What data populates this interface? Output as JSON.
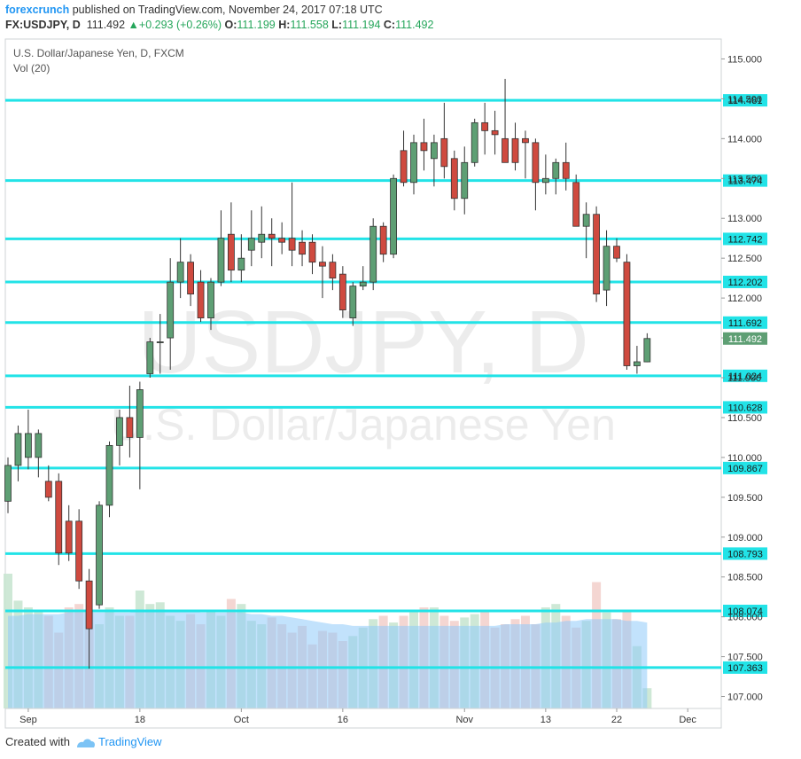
{
  "header": {
    "author": "forexcrunch",
    "published": "published on TradingView.com, November 24, 2017 07:18 UTC",
    "symbol": "FX:USDJPY, D",
    "last": "111.492",
    "change_arrow": "▲",
    "change": "+0.293 (+0.26%)",
    "o_label": "O:",
    "o": "111.199",
    "h_label": "H:",
    "h": "111.558",
    "l_label": "L:",
    "l": "111.194",
    "c_label": "C:",
    "c": "111.492"
  },
  "legend": {
    "series_title": "U.S. Dollar/Japanese Yen, D, FXCM",
    "volume_title": "Vol (20)"
  },
  "watermark": {
    "line1": "USDJPY, D",
    "line2": "U.S. Dollar/Japanese Yen"
  },
  "footer": {
    "created_with": "Created with",
    "brand": "TradingView"
  },
  "colors": {
    "up": "#5e9f74",
    "down": "#cf4a3f",
    "level_line": "#22e3e7",
    "volume_avg": "#90caf9",
    "last_price_label": "#5e9f74"
  },
  "chart_data": {
    "type": "candlestick",
    "y_range": [
      106.85,
      115.25
    ],
    "y_ticks": [
      "115.000",
      "114.500",
      "114.000",
      "113.500",
      "113.000",
      "112.500",
      "112.000",
      "111.500",
      "111.000",
      "110.500",
      "110.000",
      "109.500",
      "109.000",
      "108.500",
      "108.000",
      "107.500",
      "107.000"
    ],
    "x_ticks": [
      {
        "label": "Sep",
        "index": 2
      },
      {
        "label": "18",
        "index": 13
      },
      {
        "label": "Oct",
        "index": 23
      },
      {
        "label": "16",
        "index": 33
      },
      {
        "label": "Nov",
        "index": 45
      },
      {
        "label": "13",
        "index": 53
      },
      {
        "label": "22",
        "index": 60
      },
      {
        "label": "Dec",
        "index": 67
      }
    ],
    "horizontal_levels": [
      114.481,
      113.474,
      112.742,
      112.202,
      111.692,
      111.024,
      110.628,
      109.867,
      108.793,
      108.074,
      107.363
    ],
    "level_labels": [
      "114.481",
      "113.474",
      "112.742",
      "112.202",
      "111.692",
      "111.024",
      "110.628",
      "109.867",
      "108.793",
      "108.074",
      "107.363"
    ],
    "last_price": 111.492,
    "last_price_label": "111.492",
    "candles": [
      {
        "o": 109.45,
        "h": 110.0,
        "l": 109.3,
        "c": 109.9
      },
      {
        "o": 109.9,
        "h": 110.4,
        "l": 109.7,
        "c": 110.3
      },
      {
        "o": 110.0,
        "h": 110.6,
        "l": 109.85,
        "c": 110.3
      },
      {
        "o": 110.0,
        "h": 110.35,
        "l": 109.75,
        "c": 110.3
      },
      {
        "o": 109.7,
        "h": 109.9,
        "l": 109.45,
        "c": 109.5
      },
      {
        "o": 109.7,
        "h": 109.8,
        "l": 108.65,
        "c": 108.8
      },
      {
        "o": 109.2,
        "h": 109.4,
        "l": 108.7,
        "c": 108.8
      },
      {
        "o": 109.2,
        "h": 109.35,
        "l": 108.35,
        "c": 108.45
      },
      {
        "o": 108.45,
        "h": 108.6,
        "l": 107.35,
        "c": 107.85
      },
      {
        "o": 108.15,
        "h": 109.45,
        "l": 108.1,
        "c": 109.4
      },
      {
        "o": 109.4,
        "h": 110.2,
        "l": 109.25,
        "c": 110.15
      },
      {
        "o": 110.15,
        "h": 110.6,
        "l": 109.9,
        "c": 110.5
      },
      {
        "o": 110.5,
        "h": 110.9,
        "l": 110.0,
        "c": 110.25
      },
      {
        "o": 110.25,
        "h": 110.95,
        "l": 109.6,
        "c": 110.85
      },
      {
        "o": 111.05,
        "h": 111.5,
        "l": 111.0,
        "c": 111.45
      },
      {
        "o": 111.45,
        "h": 111.8,
        "l": 111.05,
        "c": 111.45
      },
      {
        "o": 111.5,
        "h": 112.5,
        "l": 111.1,
        "c": 112.2
      },
      {
        "o": 112.2,
        "h": 112.75,
        "l": 112.0,
        "c": 112.45
      },
      {
        "o": 112.45,
        "h": 112.55,
        "l": 111.9,
        "c": 112.05
      },
      {
        "o": 112.2,
        "h": 112.35,
        "l": 111.7,
        "c": 111.75
      },
      {
        "o": 111.75,
        "h": 112.25,
        "l": 111.6,
        "c": 112.2
      },
      {
        "o": 112.2,
        "h": 113.1,
        "l": 112.15,
        "c": 112.75
      },
      {
        "o": 112.8,
        "h": 113.2,
        "l": 112.2,
        "c": 112.35
      },
      {
        "o": 112.35,
        "h": 112.8,
        "l": 112.2,
        "c": 112.5
      },
      {
        "o": 112.6,
        "h": 113.1,
        "l": 112.4,
        "c": 112.75
      },
      {
        "o": 112.7,
        "h": 113.15,
        "l": 112.5,
        "c": 112.8
      },
      {
        "o": 112.8,
        "h": 113.0,
        "l": 112.4,
        "c": 112.75
      },
      {
        "o": 112.75,
        "h": 112.95,
        "l": 112.55,
        "c": 112.7
      },
      {
        "o": 112.75,
        "h": 113.45,
        "l": 112.4,
        "c": 112.6
      },
      {
        "o": 112.7,
        "h": 112.85,
        "l": 112.4,
        "c": 112.55
      },
      {
        "o": 112.7,
        "h": 112.8,
        "l": 112.3,
        "c": 112.45
      },
      {
        "o": 112.45,
        "h": 112.65,
        "l": 112.0,
        "c": 112.4
      },
      {
        "o": 112.45,
        "h": 112.55,
        "l": 112.1,
        "c": 112.25
      },
      {
        "o": 112.3,
        "h": 112.4,
        "l": 111.75,
        "c": 111.85
      },
      {
        "o": 111.75,
        "h": 112.2,
        "l": 111.65,
        "c": 112.15
      },
      {
        "o": 112.15,
        "h": 112.4,
        "l": 112.1,
        "c": 112.2
      },
      {
        "o": 112.2,
        "h": 113.0,
        "l": 112.1,
        "c": 112.9
      },
      {
        "o": 112.9,
        "h": 112.95,
        "l": 112.45,
        "c": 112.55
      },
      {
        "o": 112.55,
        "h": 113.55,
        "l": 112.5,
        "c": 113.5
      },
      {
        "o": 113.85,
        "h": 114.1,
        "l": 113.4,
        "c": 113.45
      },
      {
        "o": 113.45,
        "h": 114.05,
        "l": 113.3,
        "c": 113.95
      },
      {
        "o": 113.95,
        "h": 114.25,
        "l": 113.6,
        "c": 113.85
      },
      {
        "o": 113.75,
        "h": 114.05,
        "l": 113.4,
        "c": 113.95
      },
      {
        "o": 114.0,
        "h": 114.45,
        "l": 113.5,
        "c": 113.65
      },
      {
        "o": 113.75,
        "h": 113.85,
        "l": 113.1,
        "c": 113.25
      },
      {
        "o": 113.25,
        "h": 113.9,
        "l": 113.05,
        "c": 113.7
      },
      {
        "o": 113.7,
        "h": 114.25,
        "l": 113.65,
        "c": 114.2
      },
      {
        "o": 114.2,
        "h": 114.45,
        "l": 113.8,
        "c": 114.1
      },
      {
        "o": 114.1,
        "h": 114.35,
        "l": 113.8,
        "c": 114.05
      },
      {
        "o": 114.0,
        "h": 114.75,
        "l": 113.7,
        "c": 113.7
      },
      {
        "o": 114.0,
        "h": 114.2,
        "l": 113.6,
        "c": 113.7
      },
      {
        "o": 114.0,
        "h": 114.1,
        "l": 113.5,
        "c": 113.95
      },
      {
        "o": 113.95,
        "h": 114.0,
        "l": 113.1,
        "c": 113.45
      },
      {
        "o": 113.45,
        "h": 113.8,
        "l": 113.3,
        "c": 113.5
      },
      {
        "o": 113.5,
        "h": 113.75,
        "l": 113.3,
        "c": 113.7
      },
      {
        "o": 113.7,
        "h": 113.95,
        "l": 113.35,
        "c": 113.5
      },
      {
        "o": 113.45,
        "h": 113.55,
        "l": 112.95,
        "c": 112.9
      },
      {
        "o": 112.9,
        "h": 113.2,
        "l": 112.5,
        "c": 113.05
      },
      {
        "o": 113.05,
        "h": 113.15,
        "l": 111.95,
        "c": 112.05
      },
      {
        "o": 112.1,
        "h": 112.85,
        "l": 111.9,
        "c": 112.65
      },
      {
        "o": 112.65,
        "h": 112.75,
        "l": 112.45,
        "c": 112.5
      },
      {
        "o": 112.45,
        "h": 112.55,
        "l": 111.1,
        "c": 111.15
      },
      {
        "o": 111.15,
        "h": 111.4,
        "l": 111.05,
        "c": 111.2
      },
      {
        "o": 111.199,
        "h": 111.558,
        "l": 111.194,
        "c": 111.492
      }
    ],
    "volume_max": 1.0,
    "volumes": [
      0.8,
      0.64,
      0.6,
      0.58,
      0.55,
      0.45,
      0.6,
      0.62,
      0.57,
      0.5,
      0.6,
      0.55,
      0.55,
      0.7,
      0.62,
      0.63,
      0.55,
      0.52,
      0.56,
      0.5,
      0.58,
      0.55,
      0.65,
      0.62,
      0.52,
      0.5,
      0.54,
      0.5,
      0.45,
      0.49,
      0.38,
      0.46,
      0.45,
      0.4,
      0.43,
      0.48,
      0.53,
      0.55,
      0.51,
      0.55,
      0.58,
      0.6,
      0.6,
      0.55,
      0.52,
      0.54,
      0.56,
      0.58,
      0.48,
      0.5,
      0.53,
      0.55,
      0.5,
      0.6,
      0.62,
      0.55,
      0.48,
      0.52,
      0.75,
      0.57,
      0.53,
      0.58,
      0.37,
      0.12
    ],
    "volume_avg": [
      0.55,
      0.55,
      0.56,
      0.56,
      0.56,
      0.56,
      0.57,
      0.57,
      0.57,
      0.57,
      0.57,
      0.57,
      0.57,
      0.58,
      0.58,
      0.58,
      0.58,
      0.58,
      0.58,
      0.57,
      0.57,
      0.57,
      0.57,
      0.57,
      0.56,
      0.56,
      0.55,
      0.55,
      0.54,
      0.53,
      0.52,
      0.51,
      0.5,
      0.5,
      0.49,
      0.49,
      0.49,
      0.49,
      0.49,
      0.49,
      0.49,
      0.49,
      0.49,
      0.49,
      0.49,
      0.49,
      0.49,
      0.49,
      0.49,
      0.5,
      0.5,
      0.5,
      0.5,
      0.51,
      0.51,
      0.52,
      0.52,
      0.53,
      0.53,
      0.53,
      0.53,
      0.52,
      0.52,
      0.51
    ]
  }
}
